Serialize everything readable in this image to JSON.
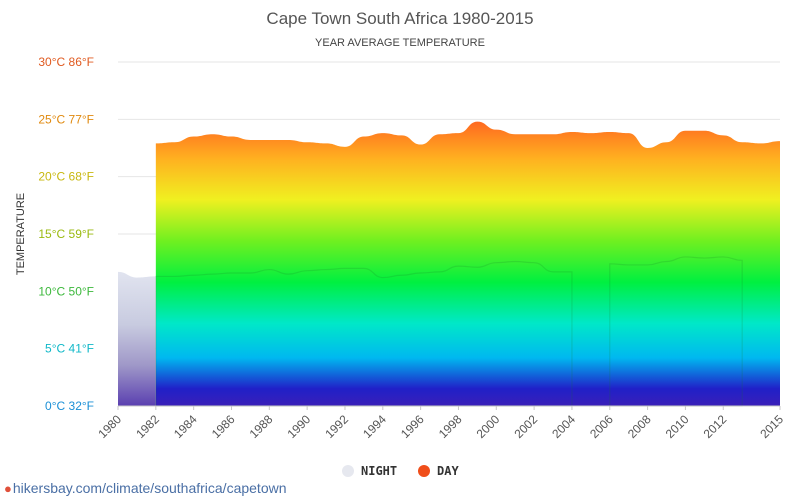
{
  "chart_data": {
    "type": "area",
    "title": "Cape Town South Africa 1980-2015",
    "subtitle": "YEAR AVERAGE TEMPERATURE",
    "ylabel": "TEMPERATURE",
    "ylim": [
      0,
      30
    ],
    "y_ticks": [
      {
        "value": 0,
        "label": "0°C 32°F",
        "color": "#1a8fd6"
      },
      {
        "value": 5,
        "label": "5°C 41°F",
        "color": "#10b8c8"
      },
      {
        "value": 10,
        "label": "10°C 50°F",
        "color": "#3cb83c"
      },
      {
        "value": 15,
        "label": "15°C 59°F",
        "color": "#9aba10"
      },
      {
        "value": 20,
        "label": "20°C 68°F",
        "color": "#c8b810"
      },
      {
        "value": 25,
        "label": "25°C 77°F",
        "color": "#e08a10"
      },
      {
        "value": 30,
        "label": "30°C 86°F",
        "color": "#e05a20"
      }
    ],
    "x_ticks": [
      "1980",
      "1982",
      "1984",
      "1986",
      "1988",
      "1990",
      "1992",
      "1994",
      "1996",
      "1998",
      "2000",
      "2002",
      "2004",
      "2006",
      "2008",
      "2010",
      "2012",
      "2015"
    ],
    "x": [
      1980,
      1981,
      1982,
      1983,
      1984,
      1985,
      1986,
      1987,
      1988,
      1989,
      1990,
      1991,
      1992,
      1993,
      1994,
      1995,
      1996,
      1997,
      1998,
      1999,
      2000,
      2001,
      2002,
      2003,
      2004,
      2005,
      2006,
      2007,
      2008,
      2009,
      2010,
      2011,
      2012,
      2013,
      2014,
      2015
    ],
    "series": [
      {
        "name": "NIGHT",
        "color": "#dfe3ee",
        "values": [
          11.7,
          11.2,
          11.3,
          11.3,
          11.4,
          11.5,
          11.6,
          11.6,
          11.9,
          11.5,
          11.8,
          11.9,
          12.0,
          12.0,
          11.2,
          11.4,
          11.6,
          11.7,
          12.2,
          12.1,
          12.5,
          12.6,
          12.5,
          11.7,
          11.7,
          null,
          12.4,
          12.3,
          12.3,
          12.6,
          13.0,
          12.9,
          13.0,
          12.7,
          null,
          null
        ]
      },
      {
        "name": "DAY",
        "color": "#f04e1a",
        "values": [
          null,
          null,
          22.9,
          23.0,
          23.5,
          23.7,
          23.5,
          23.2,
          23.2,
          23.2,
          23.0,
          22.9,
          22.6,
          23.5,
          23.8,
          23.6,
          22.8,
          23.7,
          23.8,
          24.8,
          24.1,
          23.7,
          23.7,
          23.7,
          23.9,
          23.8,
          23.9,
          23.8,
          22.5,
          23.0,
          24.0,
          24.0,
          23.6,
          23.0,
          22.9,
          23.1
        ]
      }
    ],
    "legend_position": "bottom-center",
    "grid": true
  },
  "source_url": "hikersbay.com/climate/southafrica/capetown"
}
